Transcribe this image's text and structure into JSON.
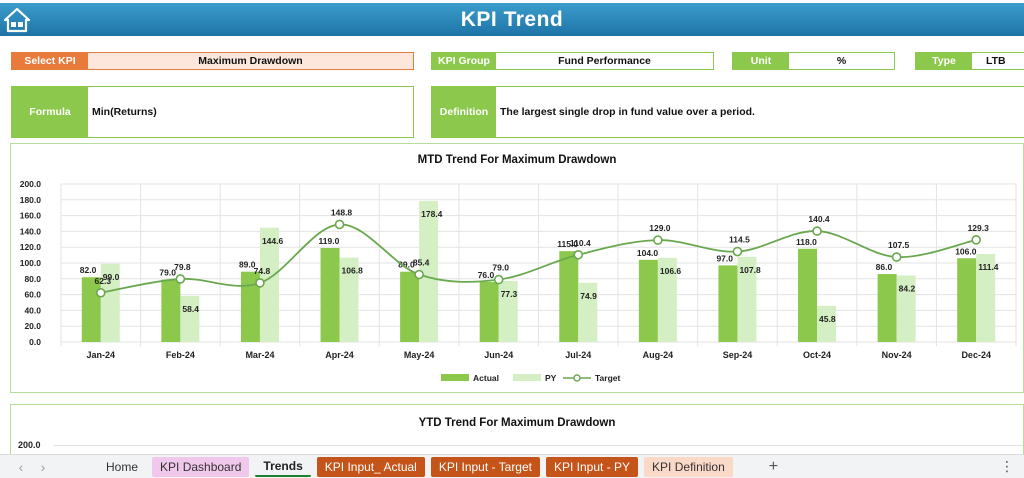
{
  "header": {
    "title": "KPI Trend",
    "home_icon": "home-icon"
  },
  "fields": {
    "select_kpi": {
      "label": "Select KPI",
      "value": "Maximum Drawdown"
    },
    "kpi_group": {
      "label": "KPI Group",
      "value": "Fund Performance"
    },
    "unit": {
      "label": "Unit",
      "value": "%"
    },
    "type": {
      "label": "Type",
      "value": "LTB"
    },
    "formula": {
      "label": "Formula",
      "value": "Min(Returns)"
    },
    "definition": {
      "label": "Definition",
      "value": "The largest single drop in fund value over a period."
    }
  },
  "colors": {
    "header": "#2a86bb",
    "green": "#8cc84b",
    "orange": "#e87a3c",
    "actual": "#8cc84b",
    "py": "#d5efc4",
    "target": "#6aa84f"
  },
  "chart_data": [
    {
      "type": "bar",
      "title": "MTD Trend For Maximum Drawdown",
      "categories": [
        "Jan-24",
        "Feb-24",
        "Mar-24",
        "Apr-24",
        "May-24",
        "Jun-24",
        "Jul-24",
        "Aug-24",
        "Sep-24",
        "Oct-24",
        "Nov-24",
        "Dec-24"
      ],
      "series": [
        {
          "name": "Actual",
          "type": "bar",
          "values": [
            82.0,
            79.0,
            89.0,
            119.0,
            89.0,
            76.0,
            115.0,
            104.0,
            97.0,
            118.0,
            86.0,
            106.0
          ]
        },
        {
          "name": "PY",
          "type": "bar",
          "values": [
            99.0,
            58.4,
            144.6,
            106.8,
            178.4,
            77.3,
            74.9,
            106.6,
            107.8,
            45.8,
            84.2,
            111.4
          ]
        },
        {
          "name": "Target",
          "type": "line",
          "values": [
            62.3,
            79.8,
            74.8,
            148.8,
            85.4,
            79.0,
            110.4,
            129.0,
            114.5,
            140.4,
            107.5,
            129.3
          ]
        }
      ],
      "yticks": [
        "0.0",
        "20.0",
        "40.0",
        "60.0",
        "80.0",
        "100.0",
        "120.0",
        "140.0",
        "160.0",
        "180.0",
        "200.0"
      ],
      "ylim": [
        0,
        200
      ],
      "grid": true,
      "legend_position": "bottom"
    },
    {
      "type": "bar",
      "title": "YTD Trend For Maximum Drawdown",
      "yticks_visible": [
        "200.0"
      ]
    }
  ],
  "mtd_chart": {
    "title": "MTD Trend For Maximum Drawdown",
    "legend": [
      "Actual",
      "PY",
      "Target"
    ]
  },
  "ytd_chart": {
    "title": "YTD Trend For Maximum Drawdown",
    "top_tick": "200.0"
  },
  "tabs": [
    {
      "label": "Home",
      "bg": "transparent",
      "color": "#333"
    },
    {
      "label": "KPI Dashboard",
      "bg": "#f0c8ec",
      "color": "#333"
    },
    {
      "label": "Trends",
      "bg": "transparent",
      "color": "#222",
      "active": true
    },
    {
      "label": "KPI Input_ Actual",
      "bg": "#c4541a",
      "color": "#fff"
    },
    {
      "label": "KPI Input - Target",
      "bg": "#c4541a",
      "color": "#fff"
    },
    {
      "label": "KPI Input - PY",
      "bg": "#c4541a",
      "color": "#fff"
    },
    {
      "label": "KPI Definition",
      "bg": "#fbd9c8",
      "color": "#333"
    }
  ],
  "tabbar": {
    "add": "+",
    "more": "⋮",
    "prev": "‹",
    "next": "›"
  }
}
